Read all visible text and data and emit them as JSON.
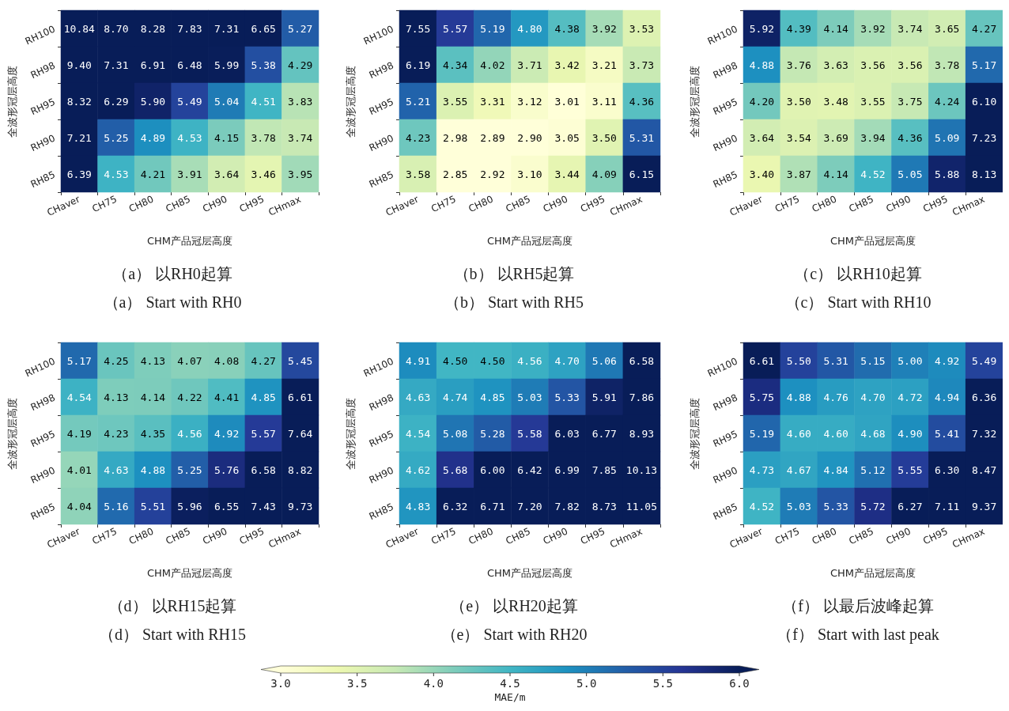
{
  "chart_data": [
    {
      "type": "heatmap",
      "title": "（a） 以RH0起算",
      "subtitle": "（a） Start with RH0",
      "xlabel": "CHM产品冠层高度",
      "ylabel": "全波形冠层高度",
      "categories": [
        "CHaver",
        "CH75",
        "CH80",
        "CH85",
        "CH90",
        "CH95",
        "CHmax"
      ],
      "y_categories": [
        "RH100",
        "RH98",
        "RH95",
        "RH90",
        "RH85"
      ],
      "data_labels": true,
      "cell_labels": [
        [
          "10.84",
          "8.70",
          "8.28",
          "7.83",
          "7.31",
          "6.65",
          "5.27"
        ],
        [
          "9.40",
          "7.31",
          "6.91",
          "6.48",
          "5.99",
          "5.38",
          "4.29"
        ],
        [
          "8.32",
          "6.29",
          "5.90",
          "5.49",
          "5.04",
          "4.51",
          "3.83"
        ],
        [
          "7.21",
          "5.25",
          "4.89",
          "4.53",
          "4.15",
          "3.78",
          "3.74"
        ],
        [
          "6.39",
          "4.53",
          "4.21",
          "3.91",
          "3.64",
          "3.46",
          "3.95"
        ]
      ],
      "cells": [
        [
          10.84,
          8.7,
          8.28,
          7.83,
          7.31,
          6.65,
          5.27
        ],
        [
          9.4,
          7.31,
          6.91,
          6.48,
          5.99,
          5.38,
          4.29
        ],
        [
          8.32,
          6.29,
          5.9,
          5.49,
          5.04,
          4.51,
          3.83
        ],
        [
          7.21,
          5.25,
          4.89,
          4.53,
          4.15,
          3.78,
          3.74
        ],
        [
          6.39,
          4.53,
          4.21,
          3.91,
          3.64,
          3.46,
          3.95
        ]
      ]
    },
    {
      "type": "heatmap",
      "title": "（b） 以RH5起算",
      "subtitle": "（b） Start with RH5",
      "xlabel": "CHM产品冠层高度",
      "ylabel": "全波形冠层高度",
      "categories": [
        "CHaver",
        "CH75",
        "CH80",
        "CH85",
        "CH90",
        "CH95",
        "CHmax"
      ],
      "y_categories": [
        "RH100",
        "RH98",
        "RH95",
        "RH90",
        "RH85"
      ],
      "data_labels": true,
      "cell_labels": [
        [
          "7.55",
          "5.57",
          "5.19",
          "4.80",
          "4.38",
          "3.92",
          "3.53"
        ],
        [
          "6.19",
          "4.34",
          "4.02",
          "3.71",
          "3.42",
          "3.21",
          "3.73"
        ],
        [
          "5.21",
          "3.55",
          "3.31",
          "3.12",
          "3.01",
          "3.11",
          "4.36"
        ],
        [
          "4.23",
          "2.98",
          "2.89",
          "2.90",
          "3.05",
          "3.50",
          "5.31"
        ],
        [
          "3.58",
          "2.85",
          "2.92",
          "3.10",
          "3.44",
          "4.09",
          "6.15"
        ]
      ],
      "cells": [
        [
          7.55,
          5.57,
          5.19,
          4.8,
          4.38,
          3.92,
          3.53
        ],
        [
          6.19,
          4.34,
          4.02,
          3.71,
          3.42,
          3.21,
          3.73
        ],
        [
          5.21,
          3.55,
          3.31,
          3.12,
          3.01,
          3.11,
          4.36
        ],
        [
          4.23,
          2.98,
          2.89,
          2.9,
          3.05,
          3.5,
          5.31
        ],
        [
          3.58,
          2.85,
          2.92,
          3.1,
          3.44,
          4.09,
          6.15
        ]
      ]
    },
    {
      "type": "heatmap",
      "title": "（c） 以RH10起算",
      "subtitle": "（c） Start with RH10",
      "xlabel": "CHM产品冠层高度",
      "ylabel": "全波形冠层高度",
      "categories": [
        "CHaver",
        "CH75",
        "CH80",
        "CH85",
        "CH90",
        "CH95",
        "CHmax"
      ],
      "y_categories": [
        "RH100",
        "RH98",
        "RH95",
        "RH90",
        "RH85"
      ],
      "data_labels": true,
      "cell_labels": [
        [
          "5.92",
          "4.39",
          "4.14",
          "3.92",
          "3.74",
          "3.65",
          "4.27"
        ],
        [
          "4.88",
          "3.76",
          "3.63",
          "3.56",
          "3.56",
          "3.78",
          "5.17"
        ],
        [
          "4.20",
          "3.50",
          "3.48",
          "3.55",
          "3.75",
          "4.24",
          "6.10"
        ],
        [
          "3.64",
          "3.54",
          "3.69",
          "3.94",
          "4.36",
          "5.09",
          "7.23"
        ],
        [
          "3.40",
          "3.87",
          "4.14",
          "4.52",
          "5.05",
          "5.88",
          "8.13"
        ]
      ],
      "cells": [
        [
          5.92,
          4.39,
          4.14,
          3.92,
          3.74,
          3.65,
          4.27
        ],
        [
          4.88,
          3.76,
          3.63,
          3.56,
          3.56,
          3.78,
          5.17
        ],
        [
          4.2,
          3.5,
          3.48,
          3.55,
          3.75,
          4.24,
          6.1
        ],
        [
          3.64,
          3.54,
          3.69,
          3.94,
          4.36,
          5.09,
          7.23
        ],
        [
          3.4,
          3.87,
          4.14,
          4.52,
          5.05,
          5.88,
          8.13
        ]
      ]
    },
    {
      "type": "heatmap",
      "title": "（d） 以RH15起算",
      "subtitle": "（d） Start with RH15",
      "xlabel": "CHM产品冠层高度",
      "ylabel": "全波形冠层高度",
      "categories": [
        "CHaver",
        "CH75",
        "CH80",
        "CH85",
        "CH90",
        "CH95",
        "CHmax"
      ],
      "y_categories": [
        "RH100",
        "RH98",
        "RH95",
        "RH90",
        "RH85"
      ],
      "data_labels": true,
      "cell_labels": [
        [
          "5.17",
          "4.25",
          "4.13",
          "4.07",
          "4.08",
          "4.27",
          "5.45"
        ],
        [
          "4.54",
          "4.13",
          "4.14",
          "4.22",
          "4.41",
          "4.85",
          "6.61"
        ],
        [
          "4.19",
          "4.23",
          "4.35",
          "4.56",
          "4.92",
          "5.57",
          "7.64"
        ],
        [
          "4.01",
          "4.63",
          "4.88",
          "5.25",
          "5.76",
          "6.58",
          "8.82"
        ],
        [
          "4.04",
          "5.16",
          "5.51",
          "5.96",
          "6.55",
          "7.43",
          "9.73"
        ]
      ],
      "cells": [
        [
          5.17,
          4.25,
          4.13,
          4.07,
          4.08,
          4.27,
          5.45
        ],
        [
          4.54,
          4.13,
          4.14,
          4.22,
          4.41,
          4.85,
          6.61
        ],
        [
          4.19,
          4.23,
          4.35,
          4.56,
          4.92,
          5.57,
          7.64
        ],
        [
          4.01,
          4.63,
          4.88,
          5.25,
          5.76,
          6.58,
          8.82
        ],
        [
          4.04,
          5.16,
          5.51,
          5.96,
          6.55,
          7.43,
          9.73
        ]
      ]
    },
    {
      "type": "heatmap",
      "title": "（e） 以RH20起算",
      "subtitle": "（e） Start with RH20",
      "xlabel": "CHM产品冠层高度",
      "ylabel": "全波形冠层高度",
      "categories": [
        "CHaver",
        "CH75",
        "CH80",
        "CH85",
        "CH90",
        "CH95",
        "CHmax"
      ],
      "y_categories": [
        "RH100",
        "RH98",
        "RH95",
        "RH90",
        "RH85"
      ],
      "data_labels": true,
      "cell_labels": [
        [
          "4.91",
          "4.50",
          "4.50",
          "4.56",
          "4.70",
          "5.06",
          "6.58"
        ],
        [
          "4.63",
          "4.74",
          "4.85",
          "5.03",
          "5.33",
          "5.91",
          "7.86"
        ],
        [
          "4.54",
          "5.08",
          "5.28",
          "5.58",
          "6.03",
          "6.77",
          "8.93"
        ],
        [
          "4.62",
          "5.68",
          "6.00",
          "6.42",
          "6.99",
          "7.85",
          "10.13"
        ],
        [
          "4.83",
          "6.32",
          "6.71",
          "7.20",
          "7.82",
          "8.73",
          "11.05"
        ]
      ],
      "cells": [
        [
          4.91,
          4.5,
          4.5,
          4.56,
          4.7,
          5.06,
          6.58
        ],
        [
          4.63,
          4.74,
          4.85,
          5.03,
          5.33,
          5.91,
          7.86
        ],
        [
          4.54,
          5.08,
          5.28,
          5.58,
          6.03,
          6.77,
          8.93
        ],
        [
          4.62,
          5.68,
          6.0,
          6.42,
          6.99,
          7.85,
          10.13
        ],
        [
          4.83,
          6.32,
          6.71,
          7.2,
          7.82,
          8.73,
          11.05
        ]
      ]
    },
    {
      "type": "heatmap",
      "title": "（f） 以最后波峰起算",
      "subtitle": "（f） Start with last peak",
      "xlabel": "CHM产品冠层高度",
      "ylabel": "全波形冠层高度",
      "categories": [
        "CHaver",
        "CH75",
        "CH80",
        "CH85",
        "CH90",
        "CH95",
        "CHmax"
      ],
      "y_categories": [
        "RH100",
        "RH98",
        "RH95",
        "RH90",
        "RH85"
      ],
      "clim": [
        3,
        6
      ],
      "data_labels": true,
      "clabel": "MAE/m",
      "cell_labels": [
        [
          "6.61",
          "5.50",
          "5.31",
          "5.15",
          "5.00",
          "4.92",
          "5.49"
        ],
        [
          "5.75",
          "4.88",
          "4.76",
          "4.70",
          "4.72",
          "4.94",
          "6.36"
        ],
        [
          "5.19",
          "4.60",
          "4.60",
          "4.68",
          "4.90",
          "5.41",
          "7.32"
        ],
        [
          "4.73",
          "4.67",
          "4.84",
          "5.12",
          "5.55",
          "6.30",
          "8.47"
        ],
        [
          "4.52",
          "5.03",
          "5.33",
          "5.72",
          "6.27",
          "7.11",
          "9.37"
        ]
      ],
      "cticks": [
        {
          "value": 3,
          "label": "3.0"
        },
        {
          "value": 3.5,
          "label": "3.5"
        },
        {
          "value": 4,
          "label": "4.0"
        },
        {
          "value": 4.5,
          "label": "4.5"
        },
        {
          "value": 5,
          "label": "5.0"
        },
        {
          "value": 5.5,
          "label": "5.5"
        },
        {
          "value": 6,
          "label": "6.0"
        }
      ],
      "cells": [
        [
          6.61,
          5.5,
          5.31,
          5.15,
          5.0,
          4.92,
          5.49
        ],
        [
          5.75,
          4.88,
          4.76,
          4.7,
          4.72,
          4.94,
          6.36
        ],
        [
          5.19,
          4.6,
          4.6,
          4.68,
          4.9,
          5.41,
          7.32
        ],
        [
          4.73,
          4.67,
          4.84,
          5.12,
          5.55,
          6.3,
          8.47
        ],
        [
          4.52,
          5.03,
          5.33,
          5.72,
          6.27,
          7.11,
          9.37
        ]
      ]
    }
  ]
}
